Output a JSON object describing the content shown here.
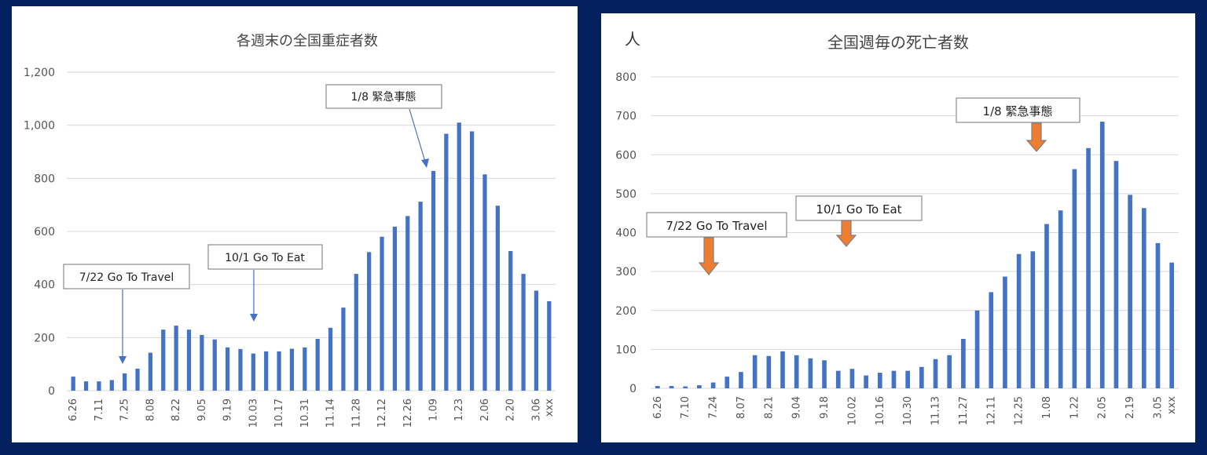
{
  "chart_data": [
    {
      "type": "bar",
      "title": "各週末の全国重症者数",
      "ylim": [
        0,
        1200
      ],
      "yticks": [
        "0",
        "200",
        "400",
        "600",
        "800",
        "1,000",
        "1,200"
      ],
      "tick_labels": [
        "6.26",
        "7.11",
        "7.25",
        "8.08",
        "8.22",
        "9.05",
        "9.19",
        "10.03",
        "10.17",
        "10.31",
        "11.14",
        "11.28",
        "12.12",
        "12.26",
        "1.09",
        "1.23",
        "2.06",
        "2.20",
        "3.06",
        "xxx"
      ],
      "values": [
        53,
        35,
        35,
        40,
        65,
        83,
        143,
        230,
        245,
        230,
        210,
        193,
        163,
        157,
        140,
        148,
        148,
        158,
        163,
        195,
        237,
        313,
        440,
        522,
        580,
        618,
        658,
        712,
        828,
        968,
        1010,
        977,
        815,
        697,
        526,
        440,
        377,
        337
      ],
      "grid": true,
      "annotations": [
        {
          "text": "7/22 Go To Travel"
        },
        {
          "text": "10/1 Go To Eat"
        },
        {
          "text": "1/8 緊急事態"
        }
      ]
    },
    {
      "type": "bar",
      "title": "全国週毎の死亡者数",
      "ylabel": "人",
      "ylim": [
        0,
        800
      ],
      "yticks": [
        "0",
        "100",
        "200",
        "300",
        "400",
        "500",
        "600",
        "700",
        "800"
      ],
      "tick_labels": [
        "6.26",
        "7.10",
        "7.24",
        "8.07",
        "8.21",
        "9.04",
        "9.18",
        "10.02",
        "10.16",
        "10.30",
        "11.13",
        "11.27",
        "12.11",
        "12.25",
        "1.08",
        "1.22",
        "2.05",
        "2.19",
        "3.05",
        "xxx"
      ],
      "values": [
        6,
        6,
        5,
        8,
        15,
        30,
        42,
        85,
        83,
        95,
        85,
        77,
        72,
        45,
        50,
        33,
        40,
        45,
        45,
        55,
        75,
        85,
        127,
        200,
        247,
        287,
        345,
        352,
        422,
        457,
        563,
        617,
        685,
        584,
        497,
        463,
        373,
        323
      ],
      "grid": true,
      "annotations": [
        {
          "text": "7/22 Go To Travel"
        },
        {
          "text": "10/1 Go To Eat"
        },
        {
          "text": "1/8 緊急事態"
        }
      ]
    }
  ],
  "colors": {
    "bar": "#4472c4",
    "arrow_chart1": "#4472c4",
    "arrow_chart2": "#ed7d31",
    "background": "#03215e"
  }
}
